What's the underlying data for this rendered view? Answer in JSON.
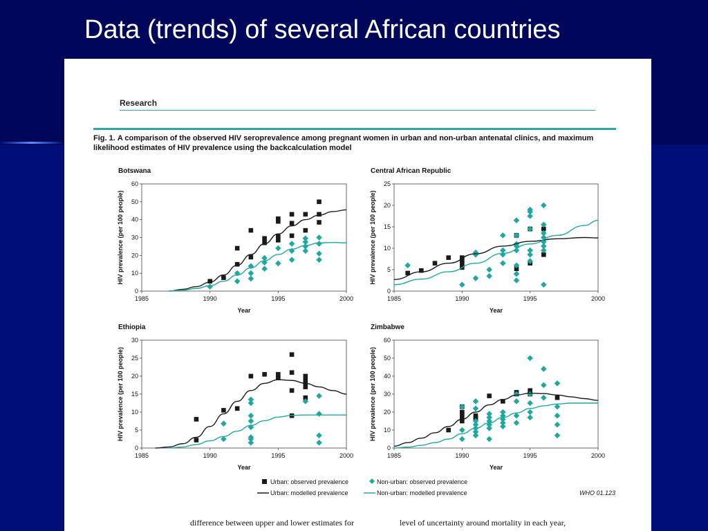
{
  "slide": {
    "title": "Data (trends) of several African countries"
  },
  "paper": {
    "section": "Research",
    "caption_label": "Fig. 1.",
    "caption_text": "A comparison of the observed HIV seroprevalence among pregnant women in urban and non-urban antenatal clinics, and maximum likelihood estimates of HIV prevalence using the backcalculation model",
    "legend": {
      "urban_observed": "Urban: observed prevalence",
      "urban_modelled": "Urban: modelled prevalence",
      "nonurban_observed": "Non-urban: observed prevalence",
      "nonurban_modelled": "Non-urban: modelled prevalence"
    },
    "figure_id": "WHO 01.123",
    "bottom_left": "difference between upper and lower estimates for",
    "bottom_right": "level of uncertainty around mortality in each year,"
  },
  "colors": {
    "urban": "#1a1a1a",
    "nonurban": "#1fa8a0",
    "background": "#000a6e"
  },
  "chart_data": [
    {
      "type": "scatter",
      "title": "Botswana",
      "xlabel": "Year",
      "ylabel": "HIV prevalence (per 100 people)",
      "xlim": [
        1985,
        2000
      ],
      "ylim": [
        0,
        60
      ],
      "xticks": [
        1985,
        1990,
        1995,
        2000
      ],
      "yticks": [
        0,
        10,
        20,
        30,
        40,
        50,
        60
      ],
      "series": [
        {
          "name": "Urban: observed prevalence",
          "style": "square",
          "x": [
            1990,
            1991,
            1992,
            1992,
            1993,
            1993,
            1994,
            1994,
            1995,
            1995,
            1995,
            1995,
            1996,
            1996,
            1996,
            1997,
            1997,
            1998,
            1998,
            1998
          ],
          "y": [
            5.5,
            7.5,
            15,
            24,
            19,
            34,
            27,
            29.5,
            28.5,
            30.5,
            39,
            40.5,
            31,
            38,
            43,
            34,
            43,
            38.5,
            43,
            50
          ]
        },
        {
          "name": "Non-urban: observed prevalence",
          "style": "diamond",
          "x": [
            1990,
            1992,
            1992,
            1993,
            1993,
            1993,
            1994,
            1994,
            1994,
            1995,
            1995,
            1996,
            1996,
            1996,
            1997,
            1997,
            1997,
            1997,
            1998,
            1998,
            1998,
            1998
          ],
          "y": [
            2.5,
            5.5,
            10,
            7,
            10,
            14,
            12.5,
            16,
            18.5,
            15.5,
            24,
            17.5,
            22.5,
            26.5,
            22.5,
            25,
            27.5,
            29.5,
            17.5,
            21,
            26.5,
            30
          ]
        },
        {
          "name": "Urban: modelled prevalence",
          "style": "line",
          "x": [
            1987,
            1988,
            1989,
            1990,
            1991,
            1992,
            1993,
            1994,
            1995,
            1996,
            1997,
            1998,
            1999,
            2000
          ],
          "y": [
            0,
            1,
            2.5,
            5,
            9,
            14.5,
            20.5,
            26.5,
            32,
            36.5,
            40,
            42.5,
            44.5,
            45.5
          ]
        },
        {
          "name": "Non-urban: modelled prevalence",
          "style": "line",
          "x": [
            1987,
            1988,
            1989,
            1990,
            1991,
            1992,
            1993,
            1994,
            1995,
            1996,
            1997,
            1998,
            1999,
            2000
          ],
          "y": [
            0,
            0.5,
            1.5,
            3,
            5.5,
            9,
            13,
            17,
            20.5,
            23.5,
            25.5,
            27,
            27.2,
            27
          ]
        }
      ]
    },
    {
      "type": "scatter",
      "title": "Central African Republic",
      "xlabel": "Year",
      "ylabel": "HIV prevalence (per 100 people)",
      "xlim": [
        1985,
        2000
      ],
      "ylim": [
        0,
        25
      ],
      "xticks": [
        1985,
        1990,
        1995,
        2000
      ],
      "yticks": [
        0,
        5,
        10,
        15,
        20,
        25
      ],
      "series": [
        {
          "name": "Urban: observed prevalence",
          "style": "square",
          "x": [
            1986,
            1987,
            1988,
            1989,
            1990,
            1990,
            1990,
            1990,
            1994,
            1994,
            1995,
            1995,
            1996,
            1996
          ],
          "y": [
            4.2,
            4.8,
            6.5,
            7.8,
            5.5,
            6.5,
            7.2,
            7.8,
            5.2,
            13,
            6.5,
            14.5,
            8.5,
            14.5
          ]
        },
        {
          "name": "Non-urban: observed prevalence",
          "style": "diamond",
          "x": [
            1986,
            1990,
            1991,
            1991,
            1991,
            1992,
            1992,
            1993,
            1993,
            1993,
            1993,
            1994,
            1994,
            1994,
            1994,
            1994,
            1994,
            1994,
            1994,
            1995,
            1995,
            1995,
            1995,
            1995,
            1995,
            1995,
            1996,
            1996,
            1996,
            1996,
            1996,
            1996,
            1996,
            1996
          ],
          "y": [
            6,
            1.5,
            3,
            8.5,
            9,
            3.5,
            5,
            6.5,
            8.5,
            9.5,
            13,
            2.5,
            4,
            6,
            9.5,
            10.5,
            11,
            13,
            16.5,
            7,
            8.5,
            9.5,
            14.5,
            17.5,
            18.5,
            19,
            1.5,
            9.5,
            10.5,
            11.5,
            12.5,
            13.5,
            15.5,
            20
          ]
        },
        {
          "name": "Urban: modelled prevalence",
          "style": "line",
          "x": [
            1985,
            1987,
            1989,
            1991,
            1993,
            1995,
            1997,
            1999,
            2000
          ],
          "y": [
            2.7,
            4.5,
            6.5,
            8.7,
            10.5,
            11.6,
            12.2,
            12.5,
            12.4
          ]
        },
        {
          "name": "Non-urban: modelled prevalence",
          "style": "line",
          "x": [
            1985,
            1987,
            1989,
            1991,
            1993,
            1995,
            1997,
            1999,
            2000
          ],
          "y": [
            1.5,
            2.8,
            4.5,
            6.5,
            8.8,
            11,
            13,
            15.3,
            16.5
          ]
        }
      ]
    },
    {
      "type": "scatter",
      "title": "Ethiopia",
      "xlabel": "Year",
      "ylabel": "HIV prevalence (per 100 people)",
      "xlim": [
        1985,
        2000
      ],
      "ylim": [
        0,
        30
      ],
      "xticks": [
        1985,
        1990,
        1995,
        2000
      ],
      "yticks": [
        0,
        5,
        10,
        15,
        20,
        25,
        30
      ],
      "series": [
        {
          "name": "Urban: observed prevalence",
          "style": "square",
          "x": [
            1989,
            1989,
            1991,
            1992,
            1993,
            1994,
            1995,
            1995,
            1996,
            1996,
            1996,
            1996,
            1997,
            1997,
            1997,
            1997,
            1997
          ],
          "y": [
            2.2,
            8,
            10.5,
            11,
            20,
            20.5,
            19.5,
            20.5,
            9,
            16,
            21,
            26,
            14,
            17,
            18,
            19,
            20
          ]
        },
        {
          "name": "Non-urban: observed prevalence",
          "style": "diamond",
          "x": [
            1991,
            1991,
            1993,
            1993,
            1993,
            1993,
            1993,
            1993,
            1993,
            1993,
            1997,
            1998,
            1998,
            1998,
            1998
          ],
          "y": [
            2.5,
            6.8,
            1.5,
            2.5,
            3,
            5.8,
            7.5,
            9,
            12.5,
            13.5,
            13,
            1.5,
            3.5,
            9.5,
            14.5
          ]
        },
        {
          "name": "Urban: modelled prevalence",
          "style": "line",
          "x": [
            1986,
            1987,
            1988,
            1989,
            1990,
            1991,
            1992,
            1993,
            1994,
            1995,
            1996,
            1997,
            1998,
            1999,
            2000
          ],
          "y": [
            0,
            0.3,
            1.2,
            3,
            6,
            9.5,
            13,
            16,
            18,
            19,
            18.8,
            18,
            17,
            16,
            15
          ]
        },
        {
          "name": "Non-urban: modelled prevalence",
          "style": "line",
          "x": [
            1987,
            1988,
            1989,
            1990,
            1991,
            1992,
            1993,
            1994,
            1995,
            1996,
            1997,
            1998,
            1999,
            2000
          ],
          "y": [
            0,
            0.3,
            1,
            2,
            3.2,
            4.7,
            6.3,
            7.6,
            8.6,
            9.1,
            9.2,
            9.2,
            9.2,
            9.2
          ]
        }
      ]
    },
    {
      "type": "scatter",
      "title": "Zimbabwe",
      "xlabel": "Year",
      "ylabel": "HIV prevalence (per 100 people)",
      "xlim": [
        1985,
        2000
      ],
      "ylim": [
        0,
        60
      ],
      "xticks": [
        1985,
        1990,
        1995,
        2000
      ],
      "yticks": [
        0,
        10,
        20,
        30,
        40,
        50,
        60
      ],
      "series": [
        {
          "name": "Urban: observed prevalence",
          "style": "square",
          "x": [
            1989,
            1990,
            1990,
            1990,
            1990,
            1990,
            1991,
            1991,
            1991,
            1992,
            1993,
            1994,
            1994,
            1995,
            1995,
            1997
          ],
          "y": [
            10,
            15,
            17,
            19,
            20,
            23,
            16,
            17,
            18,
            29,
            26,
            30,
            31,
            30,
            32,
            28
          ]
        },
        {
          "name": "Non-urban: observed prevalence",
          "style": "diamond",
          "x": [
            1990,
            1990,
            1990,
            1991,
            1991,
            1991,
            1991,
            1991,
            1991,
            1991,
            1992,
            1992,
            1992,
            1992,
            1992,
            1992,
            1993,
            1993,
            1993,
            1993,
            1993,
            1994,
            1994,
            1994,
            1994,
            1995,
            1995,
            1995,
            1995,
            1995,
            1996,
            1996,
            1996,
            1997,
            1997,
            1997,
            1997,
            1997
          ],
          "y": [
            5,
            10,
            23,
            7,
            9,
            11,
            13,
            15,
            22,
            26,
            5,
            11,
            13,
            15,
            17,
            19,
            12,
            14,
            16,
            18,
            20,
            14,
            18,
            26,
            30,
            17,
            20,
            25,
            30,
            50,
            28,
            35,
            44,
            7,
            13,
            18,
            23,
            36
          ]
        },
        {
          "name": "Urban: modelled prevalence",
          "style": "line",
          "x": [
            1985,
            1986,
            1987,
            1988,
            1989,
            1990,
            1991,
            1992,
            1993,
            1994,
            1995,
            1996,
            1997,
            1998,
            1999,
            2000
          ],
          "y": [
            1,
            3,
            5.5,
            8.5,
            12,
            16,
            20,
            24,
            27,
            29.5,
            30.5,
            30.3,
            29.5,
            28.5,
            27.5,
            26.5
          ]
        },
        {
          "name": "Non-urban: modelled prevalence",
          "style": "line",
          "x": [
            1985,
            1986,
            1987,
            1988,
            1989,
            1990,
            1991,
            1992,
            1993,
            1994,
            1995,
            1996,
            1997,
            1998,
            1999,
            2000
          ],
          "y": [
            0,
            0.5,
            1.5,
            3,
            5,
            8,
            11,
            14,
            17,
            19.5,
            22,
            23.5,
            24.5,
            25,
            25,
            25
          ]
        }
      ]
    }
  ]
}
